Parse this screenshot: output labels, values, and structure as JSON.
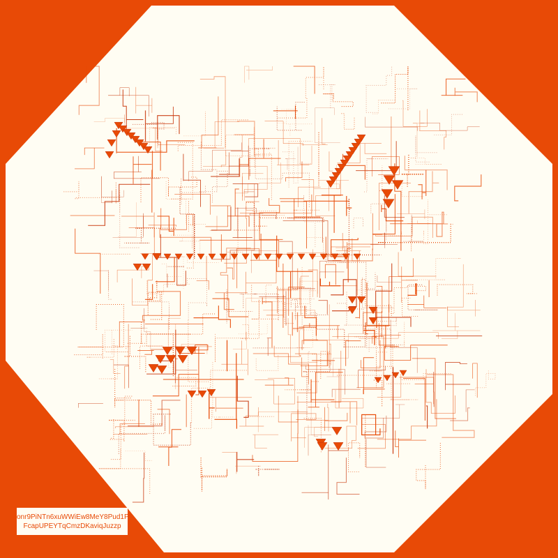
{
  "caption": {
    "line1": "onr9PiNTn6xuWWiEw8MeY8Pud1P",
    "line2": "FcapUPEYTqCmzDKaviqJuzzp"
  },
  "colors": {
    "background": "#e84a06",
    "canvas": "#fffdf3",
    "stroke": "#e84a06",
    "stroke_dark": "#c8360a"
  },
  "marker_shape": "down-triangle"
}
